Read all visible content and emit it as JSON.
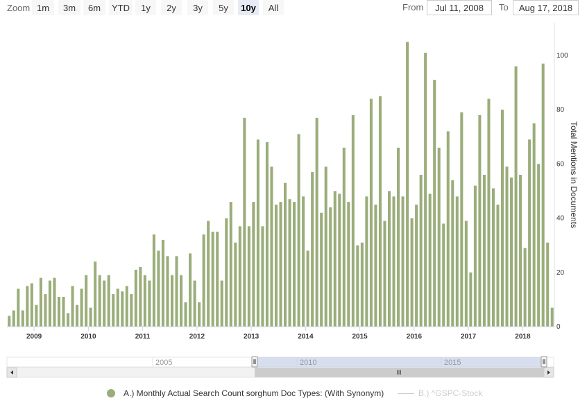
{
  "toolbar": {
    "zoom_label": "Zoom",
    "zoom_buttons": [
      "1m",
      "3m",
      "6m",
      "YTD",
      "1y",
      "2y",
      "3y",
      "5y",
      "10y",
      "All"
    ],
    "active_zoom": "10y",
    "from_label": "From",
    "from_value": "Jul 11, 2008",
    "to_label": "To",
    "to_value": "Aug 17, 2018"
  },
  "navigator": {
    "labels": [
      "2005",
      "2010",
      "2015"
    ],
    "scroll_grip": "III"
  },
  "legend": {
    "series_a": "A.) Monthly Actual Search Count sorghum Doc Types: (With Synonym)",
    "series_b": "B.) ^GSPC-Stock"
  },
  "colors": {
    "bar": "#9aad7a",
    "navigator_fill": "#ccd6eb",
    "series_b_legend": "#cccccc"
  },
  "chart_data": {
    "type": "bar",
    "xlabel": "",
    "ylabel": "Total Mentions in Documents",
    "xlim": [
      "2008-07",
      "2018-07"
    ],
    "ylim": [
      0,
      112
    ],
    "y_ticks": [
      0,
      20,
      40,
      60,
      80,
      100
    ],
    "x_ticks": [
      "2009",
      "2010",
      "2011",
      "2012",
      "2013",
      "2014",
      "2015",
      "2016",
      "2017",
      "2018"
    ],
    "y_axis_position": "right",
    "grid": false,
    "legend_position": "bottom",
    "series": [
      {
        "name": "A.) Monthly Actual Search Count sorghum Doc Types: (With Synonym)",
        "x": [
          "2008-07",
          "2008-08",
          "2008-09",
          "2008-10",
          "2008-11",
          "2008-12",
          "2009-01",
          "2009-02",
          "2009-03",
          "2009-04",
          "2009-05",
          "2009-06",
          "2009-07",
          "2009-08",
          "2009-09",
          "2009-10",
          "2009-11",
          "2009-12",
          "2010-01",
          "2010-02",
          "2010-03",
          "2010-04",
          "2010-05",
          "2010-06",
          "2010-07",
          "2010-08",
          "2010-09",
          "2010-10",
          "2010-11",
          "2010-12",
          "2011-01",
          "2011-02",
          "2011-03",
          "2011-04",
          "2011-05",
          "2011-06",
          "2011-07",
          "2011-08",
          "2011-09",
          "2011-10",
          "2011-11",
          "2011-12",
          "2012-01",
          "2012-02",
          "2012-03",
          "2012-04",
          "2012-05",
          "2012-06",
          "2012-07",
          "2012-08",
          "2012-09",
          "2012-10",
          "2012-11",
          "2012-12",
          "2013-01",
          "2013-02",
          "2013-03",
          "2013-04",
          "2013-05",
          "2013-06",
          "2013-07",
          "2013-08",
          "2013-09",
          "2013-10",
          "2013-11",
          "2013-12",
          "2014-01",
          "2014-02",
          "2014-03",
          "2014-04",
          "2014-05",
          "2014-06",
          "2014-07",
          "2014-08",
          "2014-09",
          "2014-10",
          "2014-11",
          "2014-12",
          "2015-01",
          "2015-02",
          "2015-03",
          "2015-04",
          "2015-05",
          "2015-06",
          "2015-07",
          "2015-08",
          "2015-09",
          "2015-10",
          "2015-11",
          "2015-12",
          "2016-01",
          "2016-02",
          "2016-03",
          "2016-04",
          "2016-05",
          "2016-06",
          "2016-07",
          "2016-08",
          "2016-09",
          "2016-10",
          "2016-11",
          "2016-12",
          "2017-01",
          "2017-02",
          "2017-03",
          "2017-04",
          "2017-05",
          "2017-06",
          "2017-07",
          "2017-08",
          "2017-09",
          "2017-10",
          "2017-11",
          "2017-12",
          "2018-01",
          "2018-02",
          "2018-03",
          "2018-04",
          "2018-05",
          "2018-06",
          "2018-07"
        ],
        "values": [
          4,
          6,
          14,
          6,
          15,
          16,
          8,
          18,
          12,
          17,
          18,
          11,
          11,
          5,
          15,
          8,
          14,
          19,
          7,
          24,
          19,
          17,
          19,
          12,
          14,
          13,
          15,
          12,
          21,
          22,
          19,
          17,
          34,
          28,
          32,
          26,
          19,
          26,
          19,
          9,
          27,
          17,
          9,
          34,
          39,
          35,
          35,
          17,
          40,
          46,
          31,
          37,
          77,
          37,
          46,
          69,
          37,
          68,
          59,
          45,
          46,
          53,
          47,
          46,
          71,
          48,
          28,
          57,
          77,
          42,
          59,
          44,
          50,
          49,
          66,
          46,
          78,
          30,
          31,
          48,
          84,
          45,
          85,
          39,
          50,
          48,
          66,
          48,
          105,
          40,
          45,
          56,
          101,
          49,
          91,
          66,
          38,
          72,
          54,
          48,
          79,
          39,
          20,
          52,
          78,
          56,
          84,
          51,
          45,
          80,
          59,
          55,
          96,
          56,
          29,
          69,
          75,
          60,
          97,
          31,
          7
        ]
      }
    ]
  }
}
